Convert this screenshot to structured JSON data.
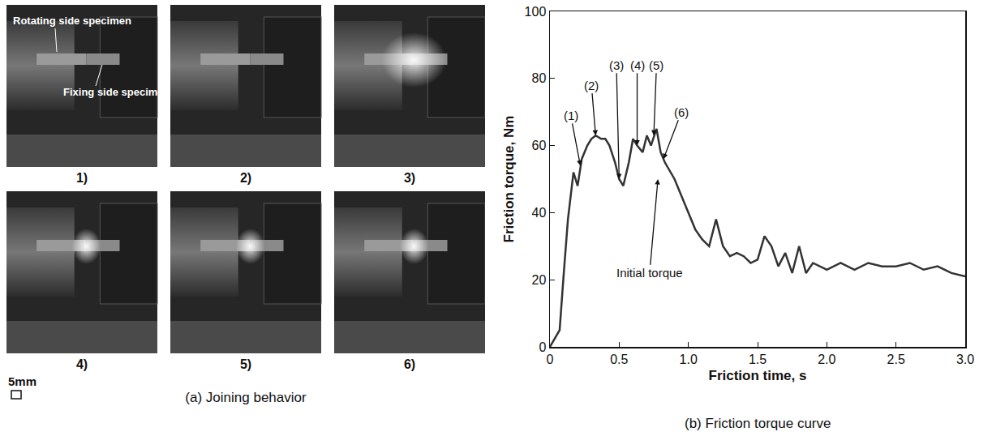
{
  "figure_a": {
    "caption": "(a) Joining behavior",
    "scale_bar": "5mm",
    "photos": [
      "1)",
      "2)",
      "3)",
      "4)",
      "5)",
      "6)"
    ],
    "labels": [
      "Rotating side specimen",
      "Fixing side specimen"
    ]
  },
  "chart_data": {
    "type": "line",
    "title": "(b) Friction torque curve",
    "x_label": "Friction time, s",
    "y_label": "Friction torque, Nm",
    "x": [
      0,
      0.03,
      0.07,
      0.1,
      0.13,
      0.17,
      0.2,
      0.23,
      0.27,
      0.3,
      0.33,
      0.37,
      0.4,
      0.43,
      0.47,
      0.5,
      0.53,
      0.57,
      0.6,
      0.63,
      0.67,
      0.7,
      0.73,
      0.77,
      0.8,
      0.83,
      0.87,
      0.9,
      0.95,
      1.0,
      1.05,
      1.1,
      1.15,
      1.2,
      1.25,
      1.3,
      1.35,
      1.4,
      1.45,
      1.5,
      1.55,
      1.6,
      1.65,
      1.7,
      1.75,
      1.8,
      1.85,
      1.9,
      2.0,
      2.1,
      2.2,
      2.3,
      2.4,
      2.5,
      2.6,
      2.7,
      2.8,
      2.9,
      3.0
    ],
    "values": [
      0,
      2,
      5,
      22,
      38,
      52,
      48,
      56,
      60,
      62,
      63,
      62,
      62,
      60,
      55,
      50,
      48,
      55,
      62,
      60,
      58,
      63,
      60,
      65,
      58,
      55,
      52,
      50,
      45,
      40,
      35,
      32,
      30,
      38,
      30,
      27,
      28,
      27,
      25,
      26,
      33,
      30,
      24,
      28,
      22,
      30,
      22,
      25,
      23,
      25,
      23,
      25,
      24,
      24,
      25,
      23,
      24,
      22,
      21
    ],
    "color": "#333333",
    "xlim": [
      0,
      3
    ],
    "xticks": [
      0,
      0.5,
      {
        "value": 1,
        "label": "1.0"
      },
      1.5,
      {
        "value": 2,
        "label": "2.0"
      },
      2.5,
      {
        "value": 3,
        "label": "3.0"
      }
    ],
    "ylim": [
      0,
      100
    ],
    "yticks": [
      0,
      20,
      40,
      60,
      80,
      100
    ],
    "grid": false,
    "annotations": [
      {
        "text": "(1)",
        "x": 0.22,
        "y": 54,
        "text_x": 0.15,
        "text_y": 69
      },
      {
        "text": "(2)",
        "x": 0.33,
        "y": 63,
        "text_x": 0.3,
        "text_y": 78
      },
      {
        "text": "(3)",
        "x": 0.5,
        "y": 50,
        "text_x": 0.48,
        "text_y": 84
      },
      {
        "text": "(4)",
        "x": 0.63,
        "y": 60,
        "text_x": 0.63,
        "text_y": 84
      },
      {
        "text": "(5)",
        "x": 0.75,
        "y": 63,
        "text_x": 0.77,
        "text_y": 84
      },
      {
        "text": "(6)",
        "x": 0.82,
        "y": 56,
        "text_x": 0.95,
        "text_y": 70
      },
      {
        "text": "Initial torque",
        "x": 0.78,
        "y": 50,
        "text_x": 0.72,
        "text_y": 22
      }
    ]
  }
}
